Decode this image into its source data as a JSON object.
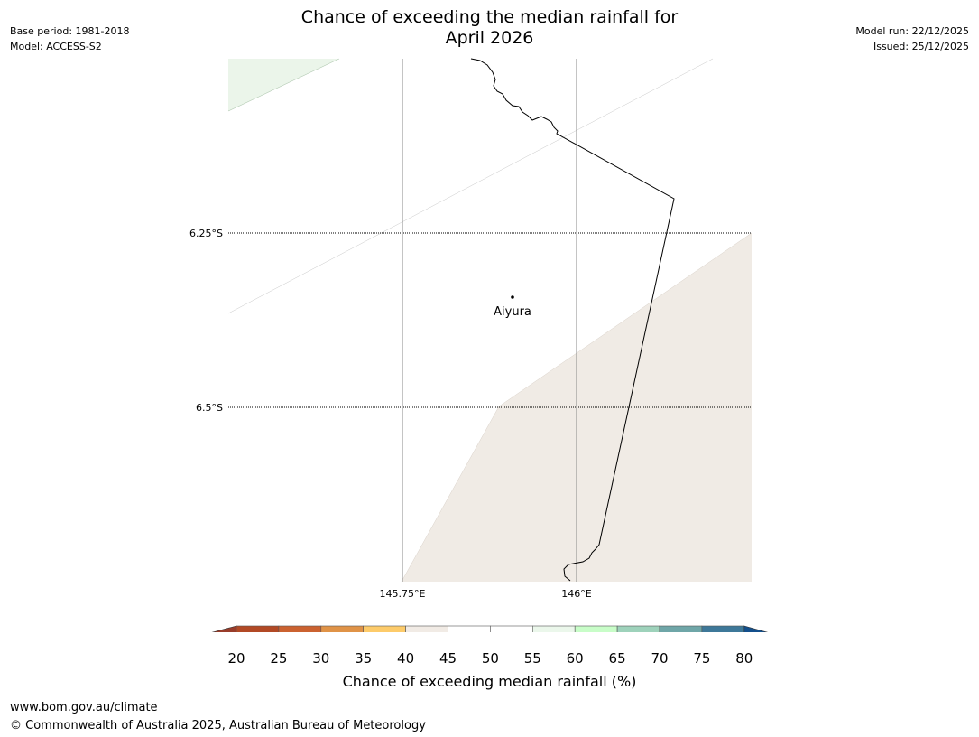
{
  "title_line1": "Chance of exceeding the median rainfall for",
  "title_line2": "April 2026",
  "meta_left": {
    "base_period": "Base period: 1981-2018",
    "model": "Model: ACCESS-S2"
  },
  "meta_right": {
    "model_run": "Model run: 22/12/2025",
    "issued": "Issued: 25/12/2025"
  },
  "map": {
    "lat_labels": [
      "6.25°S",
      "6.5°S"
    ],
    "lon_labels": [
      "145.75°E",
      "146°E"
    ],
    "place": "Aiyura"
  },
  "colorbar": {
    "ticks": [
      "20",
      "25",
      "30",
      "35",
      "40",
      "45",
      "50",
      "55",
      "60",
      "65",
      "70",
      "75",
      "80"
    ],
    "colors": [
      "#b24925",
      "#cb6230",
      "#e09347",
      "#fdcb6a",
      "#f1ebe5",
      "#ffffff",
      "#ffffff",
      "#ebf7eb",
      "#c8fdc8",
      "#9ed2bb",
      "#6fa6a8",
      "#3e7899"
    ],
    "under_color": "#993c2a",
    "over_color": "#134f8c",
    "label": "Chance of exceeding median rainfall (%)"
  },
  "footer": {
    "url": "www.bom.gov.au/climate",
    "copyright": "© Commonwealth of Australia 2025, Australian Bureau of Meteorology"
  }
}
